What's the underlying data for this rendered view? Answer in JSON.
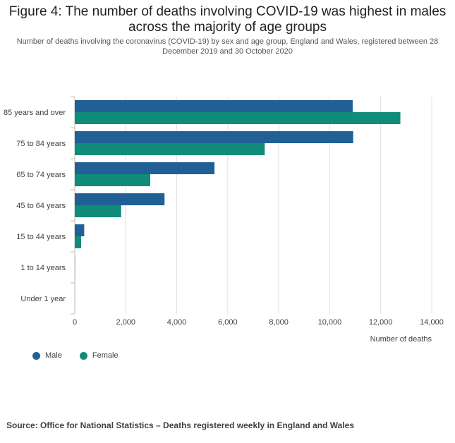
{
  "header": {
    "title": "Figure 4: The number of deaths involving COVID-19 was highest in males across the majority of age groups",
    "subtitle": "Number of deaths involving the coronavirus (COVID-19) by sex and age group, England and Wales, registered between 28 December 2019 and 30 October 2020"
  },
  "colors": {
    "male": "#206095",
    "female": "#118c7b"
  },
  "chart_data": {
    "type": "bar",
    "orientation": "horizontal",
    "categories": [
      "85 years and over",
      "75 to 84 years",
      "65 to 74 years",
      "45 to 64 years",
      "15 to 44 years",
      "1 to 14 years",
      "Under 1 year"
    ],
    "series": [
      {
        "name": "Male",
        "values": [
          10900,
          10920,
          5480,
          3520,
          370,
          10,
          3
        ]
      },
      {
        "name": "Female",
        "values": [
          12770,
          7450,
          2960,
          1820,
          250,
          8,
          2
        ]
      }
    ],
    "xlabel": "Number of deaths",
    "xlim": [
      0,
      14000
    ],
    "xticks": [
      "0",
      "2,000",
      "4,000",
      "6,000",
      "8,000",
      "10,000",
      "12,000",
      "14,000"
    ],
    "grid": true,
    "legend_position": "bottom-left"
  },
  "footer": {
    "source": "Source: Office for National Statistics – Deaths registered weekly in England and Wales"
  }
}
